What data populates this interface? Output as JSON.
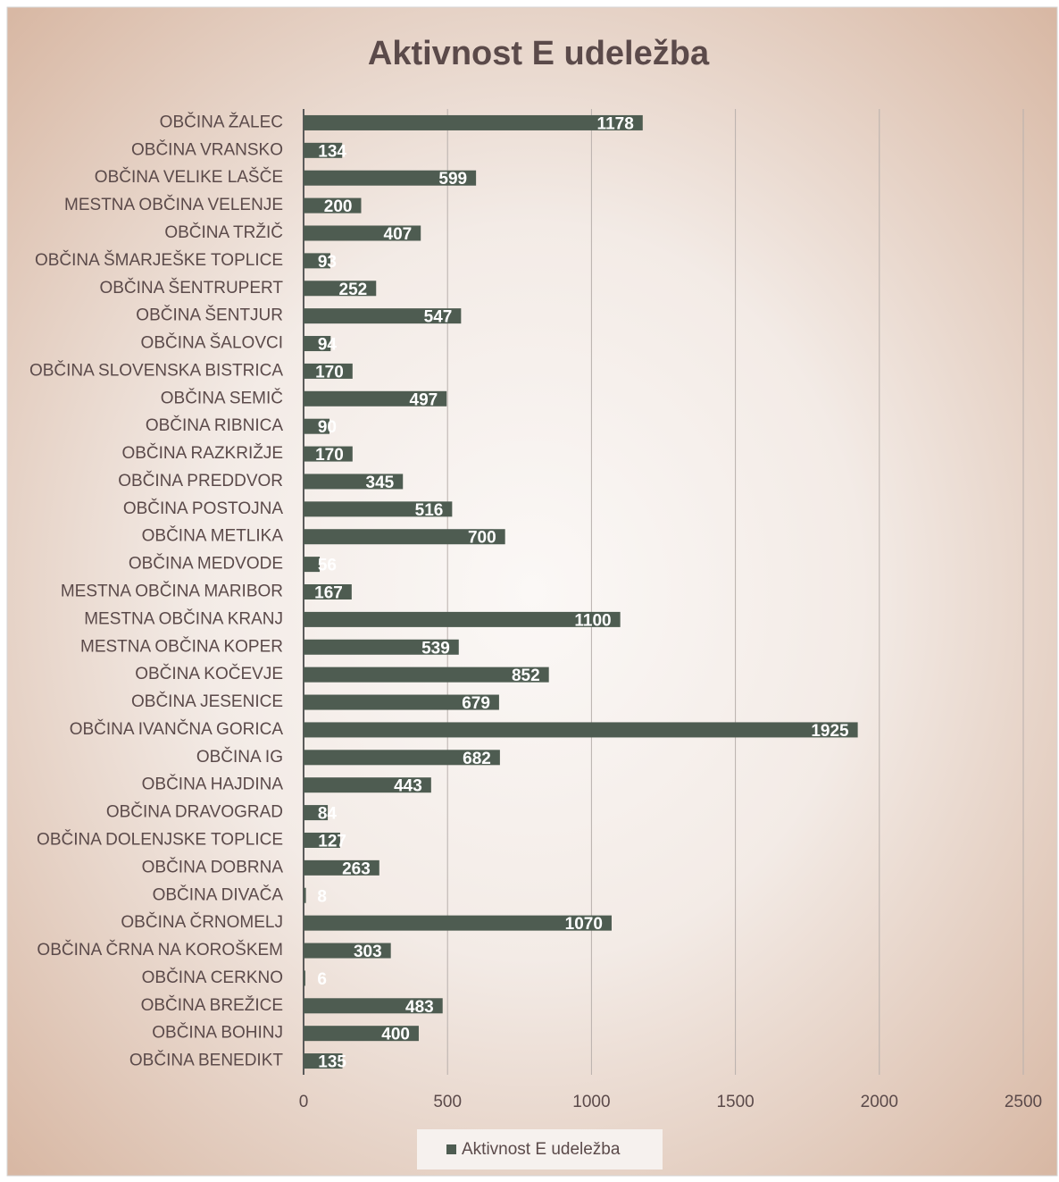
{
  "chart_data": {
    "type": "bar",
    "orientation": "horizontal",
    "title": "Aktivnost E udeležba",
    "categories": [
      "OBČINA ŽALEC",
      "OBČINA VRANSKO",
      "OBČINA VELIKE LAŠČE",
      "MESTNA OBČINA VELENJE",
      "OBČINA TRŽIČ",
      "OBČINA ŠMARJEŠKE TOPLICE",
      "OBČINA ŠENTRUPERT",
      "OBČINA ŠENTJUR",
      "OBČINA ŠALOVCI",
      "OBČINA SLOVENSKA BISTRICA",
      "OBČINA SEMIČ",
      "OBČINA RIBNICA",
      "OBČINA RAZKRIŽJE",
      "OBČINA PREDDVOR",
      "OBČINA POSTOJNA",
      "OBČINA METLIKA",
      "OBČINA MEDVODE",
      "MESTNA OBČINA MARIBOR",
      "MESTNA OBČINA KRANJ",
      "MESTNA OBČINA KOPER",
      "OBČINA KOČEVJE",
      "OBČINA JESENICE",
      "OBČINA IVANČNA GORICA",
      "OBČINA IG",
      "OBČINA HAJDINA",
      "OBČINA DRAVOGRAD",
      "OBČINA DOLENJSKE TOPLICE",
      "OBČINA DOBRNA",
      "OBČINA DIVAČA",
      "OBČINA ČRNOMELJ",
      "OBČINA ČRNA NA KOROŠKEM",
      "OBČINA CERKNO",
      "OBČINA BREŽICE",
      "OBČINA BOHINJ",
      "OBČINA BENEDIKT"
    ],
    "series": [
      {
        "name": "Aktivnost E udeležba",
        "color": "#4e5c51",
        "values": [
          1178,
          134,
          599,
          200,
          407,
          93,
          252,
          547,
          94,
          170,
          497,
          90,
          170,
          345,
          516,
          700,
          56,
          167,
          1100,
          539,
          852,
          679,
          1925,
          682,
          443,
          84,
          127,
          263,
          8,
          1070,
          303,
          6,
          483,
          400,
          135
        ]
      }
    ],
    "xlim": [
      0,
      2500
    ],
    "xticks": [
      0,
      500,
      1000,
      1500,
      2000,
      2500
    ],
    "grid": true,
    "legend": "bottom"
  }
}
